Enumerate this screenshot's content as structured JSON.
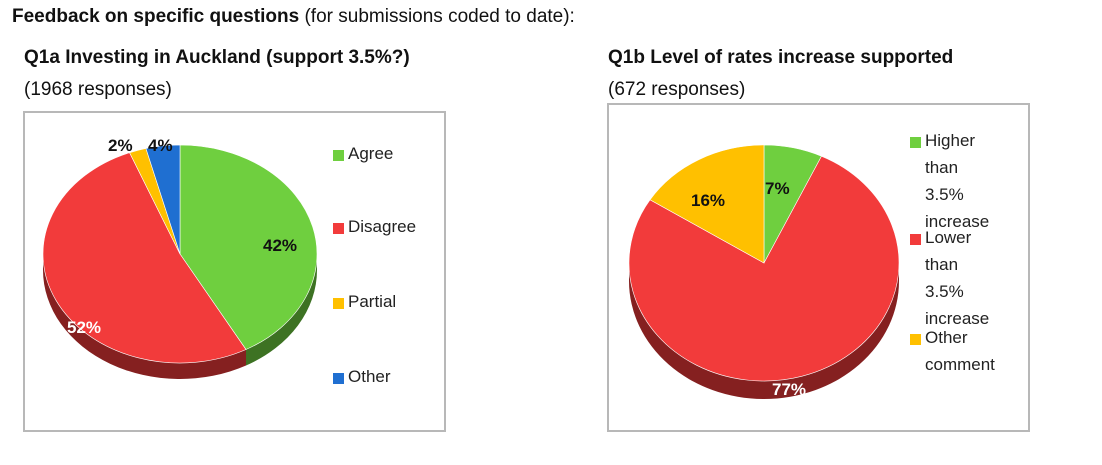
{
  "header": {
    "bold": "Feedback on specific questions",
    "rest": " (for submissions coded to date):"
  },
  "charts": [
    {
      "title": "Q1a Investing in Auckland (support 3.5%?)",
      "subtitle": "(1968 responses)"
    },
    {
      "title": "Q1b Level of rates increase supported",
      "subtitle": "(672 responses)"
    }
  ],
  "chart_data": [
    {
      "type": "pie",
      "title": "Q1a Investing in Auckland (support 3.5%?)",
      "legend_position": "right",
      "slices": [
        {
          "name": "Agree",
          "value": 42,
          "label": "42%",
          "color": "#6fcf3f"
        },
        {
          "name": "Disagree",
          "value": 52,
          "label": "52%",
          "color": "#f23b3b"
        },
        {
          "name": "Partial",
          "value": 2,
          "label": "2%",
          "color": "#ffc000"
        },
        {
          "name": "Other",
          "value": 4,
          "label": "4%",
          "color": "#1f6fd1"
        }
      ],
      "legend": [
        "Agree",
        "Disagree",
        "Partial",
        "Other"
      ]
    },
    {
      "type": "pie",
      "title": "Q1b Level of rates increase supported",
      "legend_position": "right",
      "slices": [
        {
          "name": "Higher than 3.5% increase",
          "value": 7,
          "label": "7%",
          "color": "#6fcf3f"
        },
        {
          "name": "Lower than 3.5% increase",
          "value": 77,
          "label": "77%",
          "color": "#f23b3b"
        },
        {
          "name": "Other comment",
          "value": 16,
          "label": "16%",
          "color": "#ffc000"
        }
      ],
      "legend": [
        [
          "Higher",
          "than 3.5%",
          "increase"
        ],
        [
          "Lower",
          "than 3.5%",
          "increase"
        ],
        [
          "Other",
          "comment"
        ]
      ]
    }
  ]
}
